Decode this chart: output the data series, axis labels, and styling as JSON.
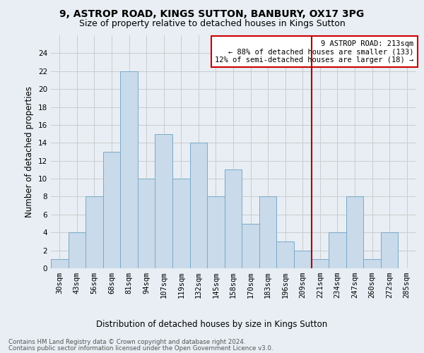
{
  "title": "9, ASTROP ROAD, KINGS SUTTON, BANBURY, OX17 3PG",
  "subtitle": "Size of property relative to detached houses in Kings Sutton",
  "xlabel": "Distribution of detached houses by size in Kings Sutton",
  "ylabel": "Number of detached properties",
  "footnote1": "Contains HM Land Registry data © Crown copyright and database right 2024.",
  "footnote2": "Contains public sector information licensed under the Open Government Licence v3.0.",
  "categories": [
    "30sqm",
    "43sqm",
    "56sqm",
    "68sqm",
    "81sqm",
    "94sqm",
    "107sqm",
    "119sqm",
    "132sqm",
    "145sqm",
    "158sqm",
    "170sqm",
    "183sqm",
    "196sqm",
    "209sqm",
    "221sqm",
    "234sqm",
    "247sqm",
    "260sqm",
    "272sqm",
    "285sqm"
  ],
  "values": [
    1,
    4,
    8,
    13,
    22,
    10,
    15,
    10,
    14,
    8,
    11,
    5,
    8,
    3,
    2,
    1,
    4,
    8,
    1,
    4,
    0
  ],
  "bar_color": "#c9daea",
  "bar_edge_color": "#7aaac8",
  "grid_color": "#cccccc",
  "vline_x": 14.5,
  "vline_color": "#aa0000",
  "annotation_box_line1": "9 ASTROP ROAD: 213sqm",
  "annotation_box_line2": "← 88% of detached houses are smaller (133)",
  "annotation_box_line3": "12% of semi-detached houses are larger (18) →",
  "annotation_box_color": "#cc0000",
  "ylim": [
    0,
    26
  ],
  "yticks": [
    0,
    2,
    4,
    6,
    8,
    10,
    12,
    14,
    16,
    18,
    20,
    22,
    24
  ],
  "background_color": "#f0f4f8",
  "title_fontsize": 10,
  "subtitle_fontsize": 9,
  "axis_label_fontsize": 8.5,
  "tick_fontsize": 7.5,
  "ann_fontsize": 7.5
}
